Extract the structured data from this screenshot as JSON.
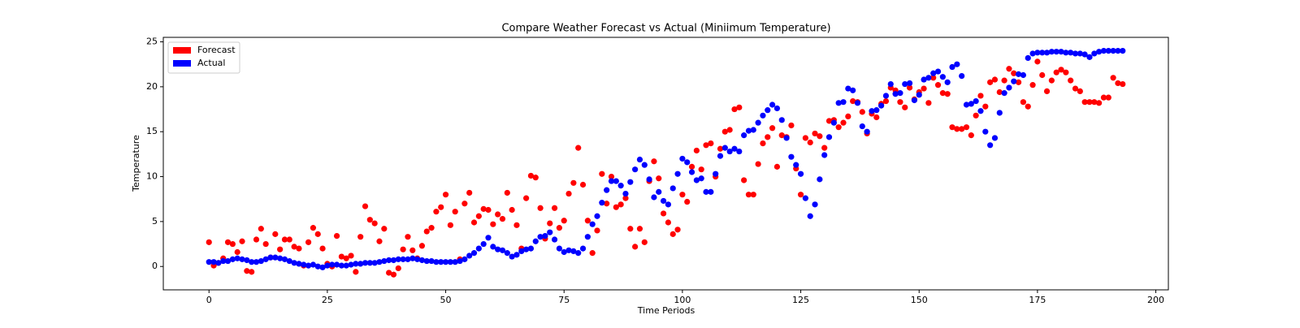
{
  "chart_data": {
    "type": "scatter",
    "title": "Compare Weather Forecast vs Actual (Miniimum Temperature)",
    "x_label": "Time Periods",
    "y_label": "Temperature",
    "x": [
      0,
      1,
      2,
      3,
      4,
      5,
      6,
      7,
      8,
      9,
      10,
      11,
      12,
      13,
      14,
      15,
      16,
      17,
      18,
      19,
      20,
      21,
      22,
      23,
      24,
      25,
      26,
      27,
      28,
      29,
      30,
      31,
      32,
      33,
      34,
      35,
      36,
      37,
      38,
      39,
      40,
      41,
      42,
      43,
      44,
      45,
      46,
      47,
      48,
      49,
      50,
      51,
      52,
      53,
      54,
      55,
      56,
      57,
      58,
      59,
      60,
      61,
      62,
      63,
      64,
      65,
      66,
      67,
      68,
      69,
      70,
      71,
      72,
      73,
      74,
      75,
      76,
      77,
      78,
      79,
      80,
      81,
      82,
      83,
      84,
      85,
      86,
      87,
      88,
      89,
      90,
      91,
      92,
      93,
      94,
      95,
      96,
      97,
      98,
      99,
      100,
      101,
      102,
      103,
      104,
      105,
      106,
      107,
      108,
      109,
      110,
      111,
      112,
      113,
      114,
      115,
      116,
      117,
      118,
      119,
      120,
      121,
      122,
      123,
      124,
      125,
      126,
      127,
      128,
      129,
      130,
      131,
      132,
      133,
      134,
      135,
      136,
      137,
      138,
      139,
      140,
      141,
      142,
      143,
      144,
      145,
      146,
      147,
      148,
      149,
      150,
      151,
      152,
      153,
      154,
      155,
      156,
      157,
      158,
      159,
      160,
      161,
      162,
      163,
      164,
      165,
      166,
      167,
      168,
      169,
      170,
      171,
      172,
      173,
      174,
      175,
      176,
      177,
      178,
      179,
      180,
      181,
      182,
      183,
      184,
      185,
      186,
      187,
      188,
      189,
      190,
      191,
      192,
      193
    ],
    "series": [
      {
        "name": "Forecast",
        "color": "#ff0000",
        "values": [
          2.7,
          0.1,
          0.4,
          0.9,
          2.7,
          2.5,
          1.6,
          2.8,
          -0.5,
          -0.6,
          3.0,
          4.2,
          2.5,
          1.0,
          3.6,
          1.9,
          3.0,
          3.0,
          2.2,
          2.0,
          0.1,
          2.7,
          4.3,
          3.6,
          2.0,
          0.3,
          0.0,
          3.4,
          1.1,
          0.9,
          1.2,
          -0.6,
          3.3,
          6.7,
          5.2,
          4.8,
          2.8,
          4.2,
          -0.7,
          -0.9,
          -0.2,
          1.9,
          3.3,
          1.8,
          0.9,
          2.3,
          3.9,
          4.3,
          6.1,
          6.6,
          8.0,
          4.6,
          6.1,
          0.8,
          7.0,
          8.2,
          4.9,
          5.6,
          6.4,
          6.3,
          4.7,
          5.8,
          5.3,
          8.2,
          6.3,
          4.6,
          2.0,
          7.6,
          10.1,
          9.9,
          6.5,
          3.1,
          4.8,
          6.5,
          4.3,
          5.1,
          8.1,
          9.3,
          13.2,
          9.1,
          5.1,
          1.5,
          4.0,
          10.3,
          7.0,
          10.0,
          6.6,
          6.9,
          7.6,
          4.2,
          2.2,
          4.2,
          2.7,
          9.5,
          11.7,
          9.8,
          5.9,
          4.9,
          3.6,
          4.1,
          8.0,
          7.2,
          11.1,
          12.9,
          10.8,
          13.5,
          13.7,
          10.0,
          13.1,
          15.0,
          15.2,
          17.5,
          17.7,
          9.6,
          8.0,
          8.0,
          11.4,
          13.7,
          14.4,
          15.4,
          11.1,
          14.6,
          14.4,
          15.7,
          10.9,
          8.0,
          14.3,
          13.8,
          14.8,
          14.5,
          13.2,
          16.2,
          16.3,
          15.5,
          16.0,
          16.7,
          18.4,
          18.3,
          17.2,
          14.8,
          17.0,
          16.6,
          18.1,
          18.4,
          19.9,
          19.6,
          18.3,
          17.7,
          19.9,
          18.6,
          19.4,
          19.8,
          18.2,
          21.0,
          20.2,
          19.3,
          19.2,
          15.5,
          15.3,
          15.3,
          15.5,
          14.6,
          16.8,
          19.0,
          17.8,
          20.5,
          20.8,
          19.4,
          20.7,
          22.0,
          21.5,
          20.5,
          18.3,
          17.8,
          20.2,
          22.8,
          21.3,
          19.5,
          20.7,
          21.6,
          21.9,
          21.6,
          20.7,
          19.8,
          19.5,
          18.3,
          18.3,
          18.3,
          18.2,
          18.8,
          18.8,
          21.0,
          20.4,
          20.3
        ]
      },
      {
        "name": "Actual",
        "color": "#0000ff",
        "values": [
          0.5,
          0.5,
          0.4,
          0.6,
          0.6,
          0.8,
          0.9,
          0.8,
          0.7,
          0.5,
          0.5,
          0.6,
          0.8,
          1.0,
          1.0,
          0.9,
          0.8,
          0.6,
          0.4,
          0.3,
          0.2,
          0.1,
          0.2,
          0.0,
          -0.1,
          0.1,
          0.2,
          0.2,
          0.1,
          0.1,
          0.2,
          0.3,
          0.3,
          0.4,
          0.4,
          0.4,
          0.5,
          0.6,
          0.7,
          0.7,
          0.8,
          0.8,
          0.8,
          0.9,
          0.8,
          0.7,
          0.6,
          0.6,
          0.5,
          0.5,
          0.5,
          0.5,
          0.5,
          0.6,
          0.8,
          1.2,
          1.5,
          2.0,
          2.5,
          3.2,
          2.2,
          1.9,
          1.8,
          1.5,
          1.1,
          1.3,
          1.7,
          1.9,
          2.0,
          2.8,
          3.3,
          3.4,
          3.8,
          3.0,
          2.0,
          1.6,
          1.8,
          1.7,
          1.5,
          2.0,
          3.3,
          4.7,
          5.6,
          7.1,
          8.5,
          9.5,
          9.5,
          9.0,
          8.1,
          9.4,
          10.8,
          11.9,
          11.3,
          9.7,
          7.7,
          8.3,
          7.3,
          6.9,
          8.7,
          10.3,
          12.0,
          11.6,
          10.5,
          9.6,
          9.8,
          8.3,
          8.3,
          10.3,
          12.3,
          13.2,
          12.8,
          13.1,
          12.8,
          14.6,
          15.1,
          15.2,
          16.0,
          16.8,
          17.4,
          18.0,
          17.6,
          16.3,
          14.3,
          12.2,
          11.3,
          10.3,
          7.6,
          5.6,
          6.9,
          9.7,
          12.4,
          14.4,
          16.0,
          18.2,
          18.3,
          19.8,
          19.6,
          18.2,
          15.6,
          15.0,
          17.3,
          17.4,
          17.9,
          19.0,
          20.3,
          19.2,
          19.3,
          20.3,
          20.4,
          18.5,
          19.1,
          20.8,
          21.0,
          21.5,
          21.7,
          21.1,
          20.5,
          22.2,
          22.5,
          21.2,
          18.0,
          18.1,
          18.4,
          17.3,
          15.0,
          13.5,
          14.3,
          17.1,
          19.3,
          19.9,
          20.6,
          21.4,
          21.3,
          23.2,
          23.7,
          23.8,
          23.8,
          23.8,
          23.9,
          23.9,
          23.9,
          23.8,
          23.8,
          23.7,
          23.7,
          23.6,
          23.3,
          23.7,
          23.9,
          24.0,
          24.0,
          24.0,
          24.0,
          24.0
        ]
      }
    ],
    "xlim": [
      -9.65,
      202.65
    ],
    "ylim": [
      -2.6,
      25.5
    ],
    "xticks": [
      0,
      25,
      50,
      75,
      100,
      125,
      150,
      175,
      200
    ],
    "yticks": [
      0,
      5,
      10,
      15,
      20,
      25
    ],
    "legend": "upper left"
  }
}
